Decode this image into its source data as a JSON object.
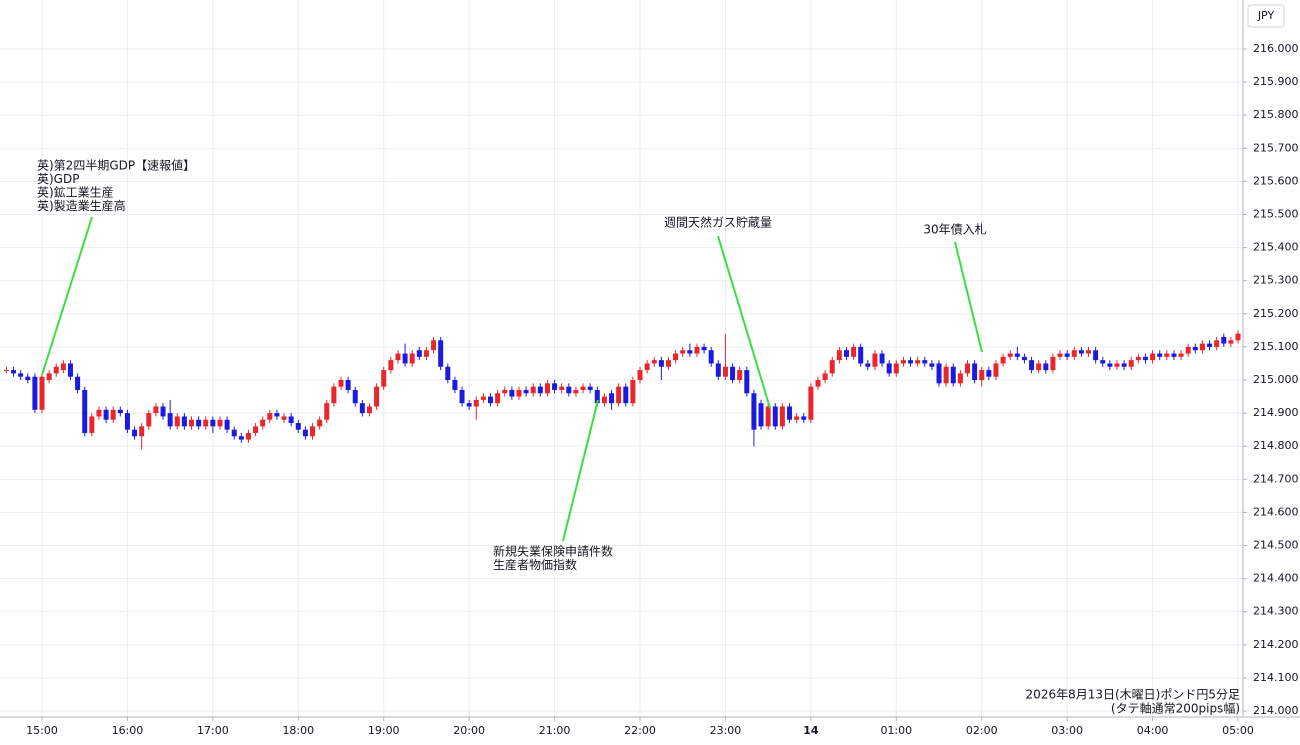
{
  "chart_data": {
    "type": "candlestick",
    "currency": "JPY",
    "footer": [
      "2026年8月13日(木曜日)ポンド円5分足",
      "(タテ軸通常200pips幅)"
    ],
    "up_color": "#e8262b",
    "down_color": "#1b1be0",
    "grid": true,
    "ylim": [
      213.982,
      216.148
    ],
    "yticks": [
      {
        "value": 214.0,
        "label": "214.000"
      },
      {
        "value": 214.1,
        "label": "214.100"
      },
      {
        "value": 214.2,
        "label": "214.200"
      },
      {
        "value": 214.3,
        "label": "214.300"
      },
      {
        "value": 214.4,
        "label": "214.400"
      },
      {
        "value": 214.5,
        "label": "214.500"
      },
      {
        "value": 214.6,
        "label": "214.600"
      },
      {
        "value": 214.7,
        "label": "214.700"
      },
      {
        "value": 214.8,
        "label": "214.800"
      },
      {
        "value": 214.9,
        "label": "214.900"
      },
      {
        "value": 215.0,
        "label": "215.000"
      },
      {
        "value": 215.1,
        "label": "215.100"
      },
      {
        "value": 215.2,
        "label": "215.200"
      },
      {
        "value": 215.3,
        "label": "215.300"
      },
      {
        "value": 215.4,
        "label": "215.400"
      },
      {
        "value": 215.5,
        "label": "215.500"
      },
      {
        "value": 215.6,
        "label": "215.600"
      },
      {
        "value": 215.7,
        "label": "215.700"
      },
      {
        "value": 215.8,
        "label": "215.800"
      },
      {
        "value": 215.9,
        "label": "215.900"
      },
      {
        "value": 216.0,
        "label": "216.000"
      }
    ],
    "xlim": [
      -0.9,
      173.7
    ],
    "xticks": [
      {
        "value": 5,
        "label": "15:00"
      },
      {
        "value": 17,
        "label": "16:00"
      },
      {
        "value": 29,
        "label": "17:00"
      },
      {
        "value": 41,
        "label": "18:00"
      },
      {
        "value": 53,
        "label": "19:00"
      },
      {
        "value": 65,
        "label": "20:00"
      },
      {
        "value": 77,
        "label": "21:00"
      },
      {
        "value": 89,
        "label": "22:00"
      },
      {
        "value": 101,
        "label": "23:00"
      },
      {
        "value": 113,
        "label": "14"
      },
      {
        "value": 125,
        "label": "01:00"
      },
      {
        "value": 137,
        "label": "02:00"
      },
      {
        "value": 149,
        "label": "03:00"
      },
      {
        "value": 161,
        "label": "04:00"
      },
      {
        "value": 173,
        "label": "05:00"
      }
    ],
    "annotations": [
      {
        "lines": [
          "英)第2四半期GDP【速報値】",
          "英)GDP",
          "英)鉱工業生産",
          "英)製造業生産高"
        ]
      },
      {
        "lines": [
          "新規失業保険申請件数",
          "生産者物価指数"
        ]
      },
      {
        "lines": [
          "週間天然ガス貯蔵量"
        ]
      },
      {
        "lines": [
          "30年債入札"
        ]
      }
    ],
    "candles": [
      [
        215.03,
        215.04,
        215.02,
        215.03
      ],
      [
        215.03,
        215.04,
        215.01,
        215.02
      ],
      [
        215.02,
        215.03,
        215.0,
        215.01
      ],
      [
        215.01,
        215.02,
        214.99,
        215.0
      ],
      [
        215.01,
        215.02,
        214.9,
        214.91
      ],
      [
        214.91,
        215.02,
        214.9,
        215.01
      ],
      [
        215.0,
        215.03,
        214.99,
        215.02
      ],
      [
        215.02,
        215.05,
        215.01,
        215.04
      ],
      [
        215.03,
        215.06,
        215.02,
        215.05
      ],
      [
        215.05,
        215.06,
        215.0,
        215.01
      ],
      [
        215.01,
        215.02,
        214.96,
        214.97
      ],
      [
        214.97,
        214.98,
        214.83,
        214.84
      ],
      [
        214.84,
        214.9,
        214.83,
        214.89
      ],
      [
        214.89,
        214.92,
        214.88,
        214.91
      ],
      [
        214.91,
        214.92,
        214.87,
        214.88
      ],
      [
        214.88,
        214.92,
        214.87,
        214.91
      ],
      [
        214.91,
        214.92,
        214.89,
        214.9
      ],
      [
        214.9,
        214.91,
        214.84,
        214.85
      ],
      [
        214.85,
        214.86,
        214.82,
        214.83
      ],
      [
        214.83,
        214.87,
        214.79,
        214.86
      ],
      [
        214.86,
        214.91,
        214.85,
        214.9
      ],
      [
        214.9,
        214.93,
        214.89,
        214.92
      ],
      [
        214.92,
        214.93,
        214.88,
        214.89
      ],
      [
        214.9,
        214.94,
        214.85,
        214.86
      ],
      [
        214.86,
        214.9,
        214.85,
        214.89
      ],
      [
        214.89,
        214.9,
        214.85,
        214.86
      ],
      [
        214.86,
        214.89,
        214.85,
        214.88
      ],
      [
        214.88,
        214.89,
        214.85,
        214.86
      ],
      [
        214.86,
        214.89,
        214.85,
        214.88
      ],
      [
        214.88,
        214.89,
        214.84,
        214.86
      ],
      [
        214.86,
        214.89,
        214.85,
        214.88
      ],
      [
        214.88,
        214.89,
        214.84,
        214.85
      ],
      [
        214.85,
        214.86,
        214.82,
        214.83
      ],
      [
        214.83,
        214.84,
        214.81,
        214.82
      ],
      [
        214.82,
        214.85,
        214.81,
        214.84
      ],
      [
        214.84,
        214.87,
        214.83,
        214.86
      ],
      [
        214.86,
        214.89,
        214.85,
        214.88
      ],
      [
        214.88,
        214.91,
        214.87,
        214.9
      ],
      [
        214.9,
        214.91,
        214.88,
        214.89
      ],
      [
        214.88,
        214.9,
        214.87,
        214.89
      ],
      [
        214.89,
        214.9,
        214.86,
        214.87
      ],
      [
        214.87,
        214.88,
        214.84,
        214.85
      ],
      [
        214.85,
        214.86,
        214.82,
        214.83
      ],
      [
        214.83,
        214.87,
        214.82,
        214.86
      ],
      [
        214.86,
        214.89,
        214.85,
        214.88
      ],
      [
        214.88,
        214.94,
        214.87,
        214.93
      ],
      [
        214.93,
        214.99,
        214.92,
        214.98
      ],
      [
        214.98,
        215.01,
        214.97,
        215.0
      ],
      [
        215.0,
        215.01,
        214.96,
        214.97
      ],
      [
        214.97,
        214.98,
        214.92,
        214.93
      ],
      [
        214.93,
        214.94,
        214.89,
        214.9
      ],
      [
        214.9,
        214.93,
        214.89,
        214.92
      ],
      [
        214.92,
        214.99,
        214.91,
        214.98
      ],
      [
        214.98,
        215.04,
        214.97,
        215.03
      ],
      [
        215.03,
        215.07,
        215.02,
        215.06
      ],
      [
        215.06,
        215.09,
        215.05,
        215.08
      ],
      [
        215.08,
        215.11,
        215.04,
        215.05
      ],
      [
        215.05,
        215.09,
        215.04,
        215.08
      ],
      [
        215.09,
        215.1,
        215.06,
        215.07
      ],
      [
        215.07,
        215.1,
        215.06,
        215.09
      ],
      [
        215.09,
        215.13,
        215.08,
        215.12
      ],
      [
        215.12,
        215.13,
        215.03,
        215.04
      ],
      [
        215.04,
        215.05,
        214.99,
        215.0
      ],
      [
        215.0,
        215.01,
        214.96,
        214.97
      ],
      [
        214.97,
        214.98,
        214.92,
        214.93
      ],
      [
        214.93,
        214.94,
        214.91,
        214.92
      ],
      [
        214.92,
        214.95,
        214.88,
        214.94
      ],
      [
        214.94,
        214.96,
        214.93,
        214.95
      ],
      [
        214.95,
        214.96,
        214.92,
        214.93
      ],
      [
        214.93,
        214.97,
        214.92,
        214.96
      ],
      [
        214.96,
        214.98,
        214.95,
        214.97
      ],
      [
        214.97,
        214.98,
        214.94,
        214.95
      ],
      [
        214.95,
        214.98,
        214.94,
        214.97
      ],
      [
        214.97,
        214.98,
        214.95,
        214.96
      ],
      [
        214.96,
        214.99,
        214.95,
        214.98
      ],
      [
        214.98,
        214.99,
        214.95,
        214.96
      ],
      [
        214.96,
        215.0,
        214.95,
        214.99
      ],
      [
        214.99,
        215.0,
        214.96,
        214.97
      ],
      [
        214.97,
        214.99,
        214.96,
        214.98
      ],
      [
        214.98,
        214.99,
        214.95,
        214.96
      ],
      [
        214.96,
        214.98,
        214.95,
        214.97
      ],
      [
        214.97,
        214.99,
        214.96,
        214.98
      ],
      [
        214.98,
        214.99,
        214.96,
        214.97
      ],
      [
        214.97,
        214.98,
        214.92,
        214.93
      ],
      [
        214.93,
        214.96,
        214.92,
        214.95
      ],
      [
        214.96,
        214.97,
        214.91,
        214.93
      ],
      [
        214.93,
        214.99,
        214.92,
        214.98
      ],
      [
        214.98,
        214.99,
        214.92,
        214.93
      ],
      [
        214.93,
        215.01,
        214.92,
        215.0
      ],
      [
        215.0,
        215.04,
        214.99,
        215.03
      ],
      [
        215.03,
        215.06,
        215.02,
        215.05
      ],
      [
        215.05,
        215.07,
        215.04,
        215.06
      ],
      [
        215.06,
        215.07,
        215.0,
        215.04
      ],
      [
        215.04,
        215.07,
        215.03,
        215.06
      ],
      [
        215.06,
        215.09,
        215.05,
        215.08
      ],
      [
        215.08,
        215.1,
        215.07,
        215.09
      ],
      [
        215.09,
        215.11,
        215.07,
        215.08
      ],
      [
        215.08,
        215.11,
        215.07,
        215.1
      ],
      [
        215.1,
        215.11,
        215.08,
        215.09
      ],
      [
        215.09,
        215.1,
        215.04,
        215.05
      ],
      [
        215.05,
        215.06,
        215.0,
        215.01
      ],
      [
        215.01,
        215.14,
        215.0,
        215.04
      ],
      [
        215.04,
        215.05,
        214.99,
        215.0
      ],
      [
        215.0,
        215.04,
        214.99,
        215.03
      ],
      [
        215.03,
        215.04,
        214.95,
        214.96
      ],
      [
        214.96,
        214.97,
        214.8,
        214.85
      ],
      [
        214.93,
        214.94,
        214.85,
        214.86
      ],
      [
        214.86,
        214.93,
        214.85,
        214.92
      ],
      [
        214.92,
        214.93,
        214.85,
        214.86
      ],
      [
        214.86,
        214.93,
        214.85,
        214.92
      ],
      [
        214.92,
        214.93,
        214.87,
        214.88
      ],
      [
        214.88,
        214.9,
        214.87,
        214.89
      ],
      [
        214.89,
        214.9,
        214.87,
        214.88
      ],
      [
        214.88,
        214.99,
        214.87,
        214.98
      ],
      [
        214.98,
        215.01,
        214.97,
        215.0
      ],
      [
        215.0,
        215.03,
        214.99,
        215.02
      ],
      [
        215.02,
        215.07,
        215.01,
        215.06
      ],
      [
        215.06,
        215.1,
        215.05,
        215.09
      ],
      [
        215.09,
        215.1,
        215.06,
        215.07
      ],
      [
        215.07,
        215.11,
        215.06,
        215.1
      ],
      [
        215.1,
        215.11,
        215.04,
        215.05
      ],
      [
        215.05,
        215.06,
        215.03,
        215.04
      ],
      [
        215.04,
        215.09,
        215.03,
        215.08
      ],
      [
        215.08,
        215.09,
        215.04,
        215.05
      ],
      [
        215.05,
        215.06,
        215.01,
        215.02
      ],
      [
        215.02,
        215.06,
        215.01,
        215.05
      ],
      [
        215.05,
        215.07,
        215.04,
        215.06
      ],
      [
        215.06,
        215.07,
        215.04,
        215.05
      ],
      [
        215.05,
        215.07,
        215.04,
        215.06
      ],
      [
        215.06,
        215.07,
        215.04,
        215.05
      ],
      [
        215.05,
        215.06,
        215.03,
        215.04
      ],
      [
        215.05,
        215.06,
        214.98,
        214.99
      ],
      [
        214.99,
        215.05,
        214.98,
        215.04
      ],
      [
        215.04,
        215.05,
        214.98,
        214.99
      ],
      [
        214.99,
        215.03,
        214.98,
        215.02
      ],
      [
        215.02,
        215.06,
        215.01,
        215.05
      ],
      [
        215.05,
        215.06,
        214.99,
        215.0
      ],
      [
        215.0,
        215.04,
        214.98,
        215.03
      ],
      [
        215.03,
        215.04,
        215.0,
        215.01
      ],
      [
        215.01,
        215.06,
        215.0,
        215.05
      ],
      [
        215.05,
        215.08,
        215.04,
        215.07
      ],
      [
        215.07,
        215.09,
        215.06,
        215.08
      ],
      [
        215.08,
        215.1,
        215.06,
        215.07
      ],
      [
        215.07,
        215.08,
        215.05,
        215.06
      ],
      [
        215.06,
        215.07,
        215.02,
        215.03
      ],
      [
        215.03,
        215.06,
        215.02,
        215.05
      ],
      [
        215.05,
        215.06,
        215.02,
        215.03
      ],
      [
        215.03,
        215.08,
        215.02,
        215.07
      ],
      [
        215.07,
        215.09,
        215.06,
        215.08
      ],
      [
        215.08,
        215.09,
        215.06,
        215.07
      ],
      [
        215.07,
        215.1,
        215.06,
        215.09
      ],
      [
        215.09,
        215.1,
        215.07,
        215.08
      ],
      [
        215.08,
        215.1,
        215.07,
        215.09
      ],
      [
        215.09,
        215.1,
        215.05,
        215.06
      ],
      [
        215.06,
        215.07,
        215.04,
        215.05
      ],
      [
        215.05,
        215.06,
        215.03,
        215.04
      ],
      [
        215.04,
        215.06,
        215.03,
        215.05
      ],
      [
        215.05,
        215.06,
        215.03,
        215.04
      ],
      [
        215.04,
        215.07,
        215.03,
        215.06
      ],
      [
        215.06,
        215.08,
        215.05,
        215.07
      ],
      [
        215.07,
        215.08,
        215.05,
        215.06
      ],
      [
        215.06,
        215.09,
        215.05,
        215.08
      ],
      [
        215.08,
        215.09,
        215.06,
        215.07
      ],
      [
        215.07,
        215.09,
        215.06,
        215.08
      ],
      [
        215.08,
        215.09,
        215.06,
        215.07
      ],
      [
        215.07,
        215.09,
        215.06,
        215.08
      ],
      [
        215.08,
        215.11,
        215.07,
        215.1
      ],
      [
        215.1,
        215.11,
        215.08,
        215.09
      ],
      [
        215.09,
        215.12,
        215.08,
        215.11
      ],
      [
        215.11,
        215.12,
        215.09,
        215.1
      ],
      [
        215.1,
        215.13,
        215.09,
        215.12
      ],
      [
        215.13,
        215.14,
        215.1,
        215.11
      ],
      [
        215.11,
        215.13,
        215.1,
        215.12
      ],
      [
        215.12,
        215.15,
        215.11,
        215.14
      ]
    ]
  }
}
